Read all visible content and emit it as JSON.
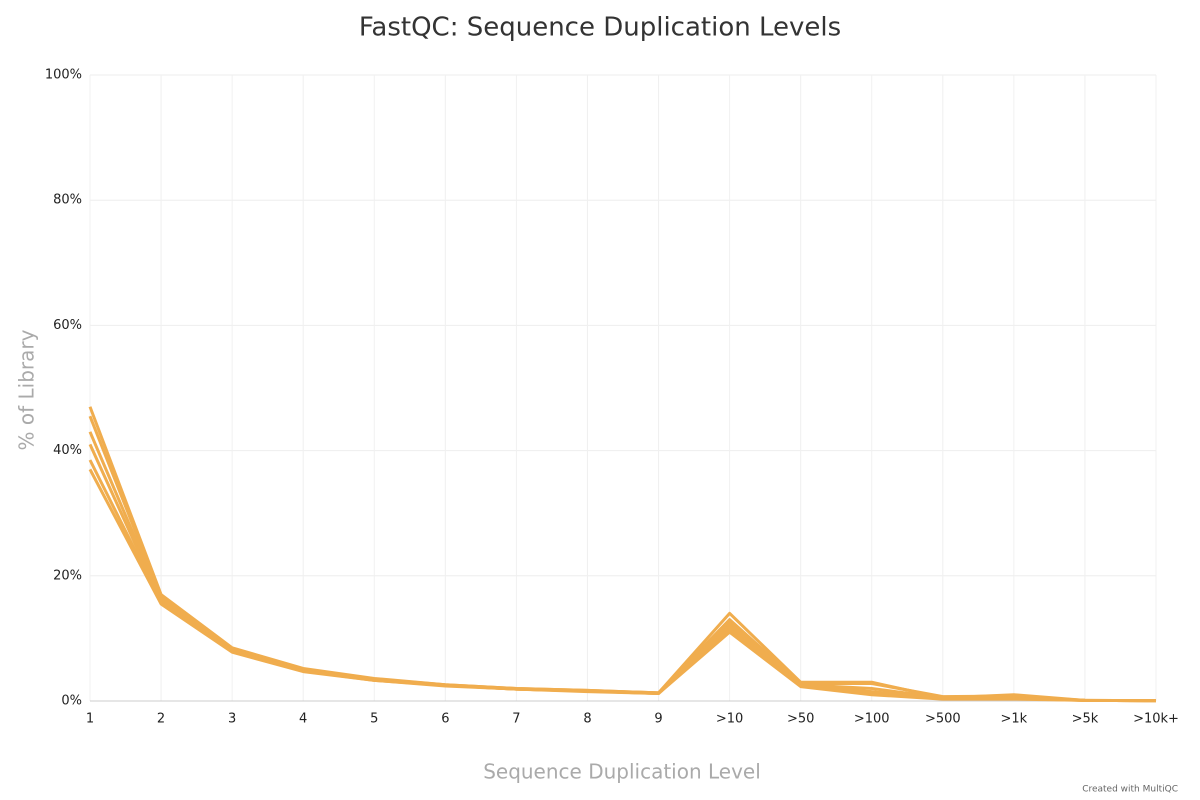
{
  "chart_data": {
    "type": "line",
    "title": "FastQC: Sequence Duplication Levels",
    "x_label": "Sequence Duplication Level",
    "y_label": "% of Library",
    "credit": "Created with MultiQC",
    "categories": [
      "1",
      "2",
      "3",
      "4",
      "5",
      "6",
      "7",
      "8",
      "9",
      ">10",
      ">50",
      ">100",
      ">500",
      ">1k",
      ">5k",
      ">10k+"
    ],
    "series": [
      {
        "color": "#f0ad4e",
        "values": [
          47,
          17,
          8.5,
          5.2,
          3.6,
          2.6,
          2.0,
          1.7,
          1.3,
          14,
          3.0,
          3.0,
          0.5,
          1.0,
          0.1,
          0.05
        ]
      },
      {
        "color": "#f0ad4e",
        "values": [
          45.5,
          16.7,
          8.3,
          5.1,
          3.5,
          2.6,
          2.0,
          1.7,
          1.3,
          13,
          2.8,
          2.8,
          0.7,
          0.8,
          0.1,
          0.05
        ]
      },
      {
        "color": "#f0ad4e",
        "values": [
          43,
          16.3,
          8.1,
          5.0,
          3.4,
          2.5,
          1.9,
          1.6,
          1.3,
          12.5,
          2.6,
          2.0,
          0.5,
          0.6,
          0.1,
          0.05
        ]
      },
      {
        "color": "#f0ad4e",
        "values": [
          41,
          16.0,
          8.0,
          4.9,
          3.4,
          2.5,
          1.9,
          1.6,
          1.2,
          12,
          2.5,
          1.5,
          0.4,
          0.5,
          0.1,
          0.05
        ]
      },
      {
        "color": "#f0ad4e",
        "values": [
          38.5,
          15.8,
          7.9,
          4.8,
          3.3,
          2.5,
          1.9,
          1.6,
          1.2,
          11.5,
          2.4,
          1.2,
          0.6,
          0.4,
          0.1,
          0.05
        ]
      },
      {
        "color": "#f0ad4e",
        "values": [
          37,
          15.5,
          7.8,
          4.7,
          3.3,
          2.4,
          1.9,
          1.5,
          1.2,
          11,
          2.3,
          1.0,
          0.3,
          0.3,
          0.1,
          0.05
        ]
      }
    ],
    "ylim": [
      0,
      100
    ],
    "yticks": [
      {
        "value": 0,
        "label": "0%"
      },
      {
        "value": 20,
        "label": "20%"
      },
      {
        "value": 40,
        "label": "40%"
      },
      {
        "value": 60,
        "label": "60%"
      },
      {
        "value": 80,
        "label": "80%"
      },
      {
        "value": 100,
        "label": "100%"
      }
    ],
    "grid": true
  }
}
